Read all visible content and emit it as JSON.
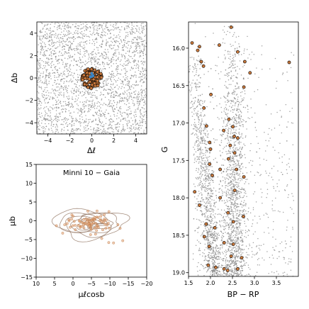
{
  "chart_data": [
    {
      "type": "scatter",
      "panel": "sky_position",
      "xlabel": "Δℓ",
      "ylabel": "Δb",
      "xlim": [
        -5,
        5
      ],
      "ylim": [
        -5,
        5
      ],
      "xticks": [
        -4,
        -2,
        0,
        2,
        4
      ],
      "yticks": [
        -4,
        -2,
        0,
        2,
        4
      ],
      "background_stars": {
        "color": "#8c8c8c",
        "approx_count": 2500,
        "x_range": [
          -5,
          5
        ],
        "y_range": [
          -5,
          5
        ]
      },
      "members": {
        "color": "#c8783c",
        "edge": "#000000",
        "center": [
          0.0,
          0.0
        ],
        "radius": 0.9,
        "approx_count": 100
      },
      "highlight": {
        "color": "#3a86c8",
        "x": [
          0.0,
          -0.1,
          0.1
        ],
        "y": [
          0.4,
          0.1,
          0.2
        ]
      },
      "grid": false
    },
    {
      "type": "scatter",
      "panel": "proper_motion",
      "title": "Minni 10 − Gaia",
      "xlabel": "μℓcosb",
      "ylabel": "μb",
      "xlim": [
        10,
        -20
      ],
      "ylim": [
        -15,
        15
      ],
      "xticks": [
        10,
        5,
        0,
        -5,
        -10,
        -15,
        -20
      ],
      "yticks": [
        15,
        10,
        5,
        0,
        -5,
        -10,
        -15
      ],
      "contour_center": [
        -5.0,
        -0.8
      ],
      "contour_color": "#8c6e5a",
      "members": {
        "color": "#e6a173",
        "edge": "#b47846"
      },
      "outliers": {
        "x": [
          -7.8,
          -9.7,
          -11.0,
          -13.5,
          2.8
        ],
        "y": [
          -4.7,
          -5.8,
          -5.9,
          -5.3,
          -3.3
        ]
      },
      "grid": false
    },
    {
      "type": "scatter",
      "panel": "color_magnitude",
      "xlabel": "BP − RP",
      "ylabel": "G",
      "xlim": [
        1.5,
        4.0
      ],
      "ylim": [
        19.05,
        15.65
      ],
      "y_inverted": true,
      "xticks": [
        1.5,
        2.0,
        2.5,
        3.0,
        3.5
      ],
      "yticks": [
        16.0,
        16.5,
        17.0,
        17.5,
        18.0,
        18.5,
        19.0
      ],
      "field_stars": {
        "color": "#8c8c8c",
        "approx_count": 3000
      },
      "sequences": [
        {
          "g_bright": 16.1,
          "g_faint": 19.0,
          "bp_rp_at_bright": 1.6,
          "bp_rp_at_faint": 2.1
        },
        {
          "g_bright": 15.9,
          "g_faint": 19.0,
          "bp_rp_at_bright": 2.5,
          "bp_rp_at_faint": 2.55
        }
      ],
      "members": {
        "color": "#c8783c",
        "edge": "#000000",
        "points": [
          [
            1.58,
            15.93
          ],
          [
            1.71,
            16.03
          ],
          [
            1.75,
            15.98
          ],
          [
            1.79,
            16.18
          ],
          [
            1.84,
            16.24
          ],
          [
            2.2,
            15.96
          ],
          [
            2.47,
            15.72
          ],
          [
            2.62,
            16.05
          ],
          [
            2.78,
            16.18
          ],
          [
            2.9,
            16.33
          ],
          [
            3.79,
            16.19
          ],
          [
            2.76,
            16.52
          ],
          [
            1.85,
            16.8
          ],
          [
            2.01,
            16.62
          ],
          [
            1.91,
            17.04
          ],
          [
            1.98,
            17.26
          ],
          [
            2.0,
            17.35
          ],
          [
            2.42,
            16.95
          ],
          [
            2.51,
            17.05
          ],
          [
            2.54,
            17.18
          ],
          [
            2.62,
            17.2
          ],
          [
            2.45,
            17.3
          ],
          [
            2.41,
            17.48
          ],
          [
            1.98,
            17.55
          ],
          [
            2.04,
            17.7
          ],
          [
            2.22,
            17.62
          ],
          [
            2.59,
            17.62
          ],
          [
            2.55,
            17.9
          ],
          [
            2.76,
            17.72
          ],
          [
            1.64,
            17.92
          ],
          [
            1.75,
            18.1
          ],
          [
            2.22,
            18.0
          ],
          [
            2.4,
            18.2
          ],
          [
            2.52,
            18.32
          ],
          [
            2.75,
            18.25
          ],
          [
            1.86,
            18.52
          ],
          [
            1.97,
            18.65
          ],
          [
            2.31,
            18.6
          ],
          [
            2.52,
            18.62
          ],
          [
            2.71,
            18.8
          ],
          [
            2.47,
            18.78
          ],
          [
            2.12,
            18.93
          ],
          [
            2.31,
            18.95
          ],
          [
            2.39,
            18.97
          ],
          [
            1.95,
            18.9
          ],
          [
            2.55,
            17.4
          ],
          [
            2.3,
            17.1
          ],
          [
            2.62,
            18.95
          ],
          [
            1.9,
            18.35
          ],
          [
            2.1,
            18.4
          ]
        ]
      },
      "grid": false
    }
  ]
}
